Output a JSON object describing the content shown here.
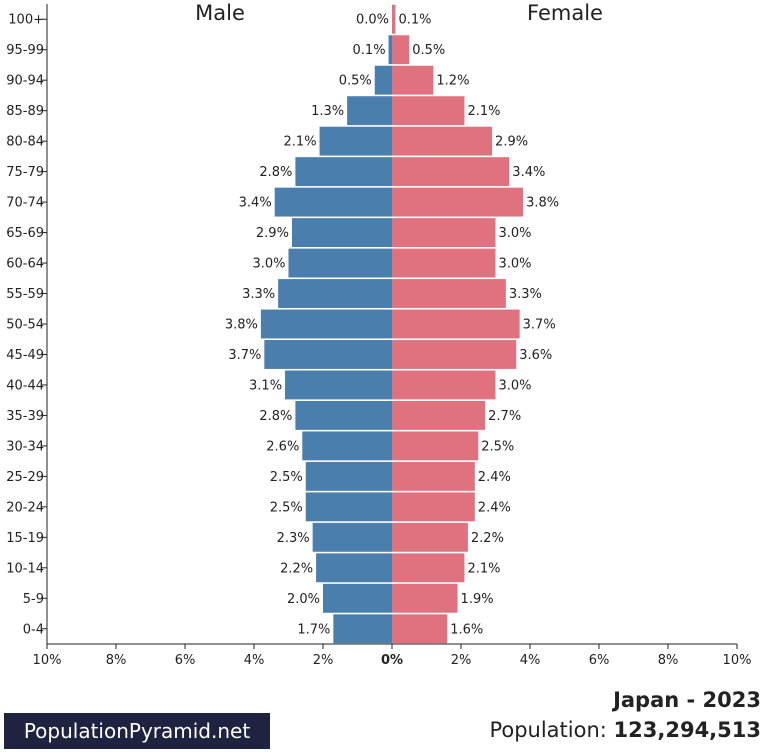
{
  "chart_data": {
    "type": "bar",
    "orientation": "horizontal-pyramid",
    "categories": [
      "0-4",
      "5-9",
      "10-14",
      "15-19",
      "20-24",
      "25-29",
      "30-34",
      "35-39",
      "40-44",
      "45-49",
      "50-54",
      "55-59",
      "60-64",
      "65-69",
      "70-74",
      "75-79",
      "80-84",
      "85-89",
      "90-94",
      "95-99",
      "100+"
    ],
    "series": [
      {
        "name": "Male",
        "color": "#4a7eac",
        "values": [
          1.7,
          2.0,
          2.2,
          2.3,
          2.5,
          2.5,
          2.6,
          2.8,
          3.1,
          3.7,
          3.8,
          3.3,
          3.0,
          2.9,
          3.4,
          2.8,
          2.1,
          1.3,
          0.5,
          0.1,
          0.0
        ]
      },
      {
        "name": "Female",
        "color": "#e0727f",
        "values": [
          1.6,
          1.9,
          2.1,
          2.2,
          2.4,
          2.4,
          2.5,
          2.7,
          3.0,
          3.6,
          3.7,
          3.3,
          3.0,
          3.0,
          3.8,
          3.4,
          2.9,
          2.1,
          1.2,
          0.5,
          0.1
        ]
      }
    ],
    "xlim": [
      -10,
      10
    ],
    "xticks": [
      "10%",
      "8%",
      "6%",
      "4%",
      "2%",
      "0%",
      "2%",
      "4%",
      "6%",
      "8%",
      "10%"
    ],
    "title_left": "Male",
    "title_right": "Female"
  },
  "footer": {
    "brand": "PopulationPyramid.net",
    "country_year": "Japan - 2023",
    "population_label": "Population: ",
    "population_value": "123,294,513"
  }
}
